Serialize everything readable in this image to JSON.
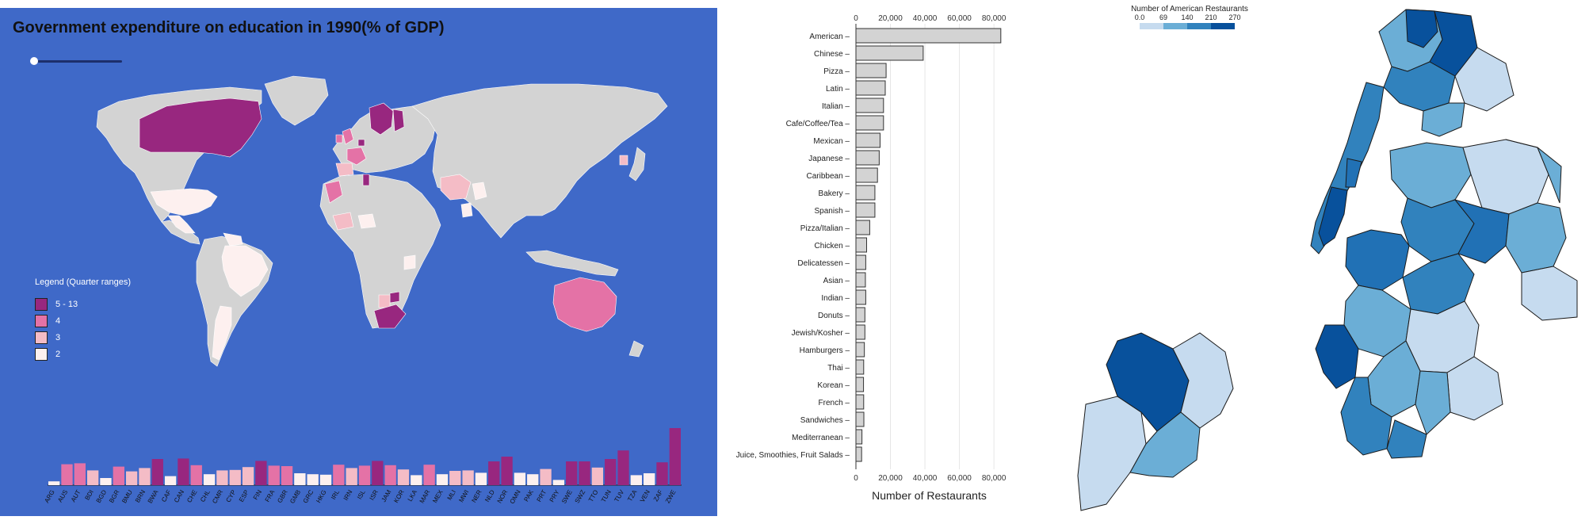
{
  "world_map": {
    "title": "Government expenditure on education in 1990(% of GDP)",
    "background_color": "#3f69c8",
    "legend": {
      "title": "Legend (Quarter ranges)",
      "items": [
        {
          "label": "5 - 13",
          "color": "#98277f"
        },
        {
          "label": "4",
          "color": "#e472a6"
        },
        {
          "label": "3",
          "color": "#f4bcc6"
        },
        {
          "label": "2",
          "color": "#fdf0ef"
        }
      ]
    },
    "no_data_color": "#d3d3d3"
  },
  "chart_data": [
    {
      "type": "bar",
      "title": "Government expenditure on education in 1990(% of GDP)",
      "categories": [
        "ARG",
        "AUS",
        "AUT",
        "BDI",
        "BGD",
        "BGR",
        "BMU",
        "BRN",
        "BWA",
        "CAF",
        "CAN",
        "CHE",
        "CHL",
        "CMR",
        "CYP",
        "ESP",
        "FIN",
        "FRA",
        "GBR",
        "GMB",
        "GRC",
        "HKG",
        "IRL",
        "IRN",
        "ISL",
        "ISR",
        "JAM",
        "KOR",
        "LKA",
        "MAR",
        "MEX",
        "MLI",
        "MWI",
        "NER",
        "NLD",
        "NOR",
        "OMN",
        "PAK",
        "PRT",
        "PRY",
        "SWE",
        "SWZ",
        "TTO",
        "TUN",
        "TUV",
        "TZA",
        "VEN",
        "ZAF",
        "ZWE"
      ],
      "values": [
        0.8,
        4.4,
        4.6,
        3.1,
        1.5,
        3.9,
        2.9,
        3.6,
        5.5,
        1.9,
        5.6,
        4.2,
        2.3,
        3.1,
        3.2,
        3.8,
        5.1,
        4.1,
        4.0,
        2.5,
        2.3,
        2.2,
        4.3,
        3.6,
        4.1,
        5.1,
        4.2,
        3.3,
        2.1,
        4.3,
        2.3,
        3.0,
        3.1,
        2.6,
        5.0,
        6.0,
        2.6,
        2.3,
        3.4,
        1.1,
        5.0,
        5.0,
        3.7,
        5.5,
        7.3,
        2.1,
        2.5,
        4.8,
        12.0
      ],
      "colors": [
        "#fdf0ef",
        "#e472a6",
        "#e472a6",
        "#f4bcc6",
        "#fdf0ef",
        "#e472a6",
        "#f4bcc6",
        "#f4bcc6",
        "#98277f",
        "#fdf0ef",
        "#98277f",
        "#e472a6",
        "#fdf0ef",
        "#f4bcc6",
        "#f4bcc6",
        "#f4bcc6",
        "#98277f",
        "#e472a6",
        "#e472a6",
        "#fdf0ef",
        "#fdf0ef",
        "#fdf0ef",
        "#e472a6",
        "#f4bcc6",
        "#e472a6",
        "#98277f",
        "#e472a6",
        "#f4bcc6",
        "#fdf0ef",
        "#e472a6",
        "#fdf0ef",
        "#f4bcc6",
        "#f4bcc6",
        "#fdf0ef",
        "#98277f",
        "#98277f",
        "#fdf0ef",
        "#fdf0ef",
        "#f4bcc6",
        "#fdf0ef",
        "#98277f",
        "#98277f",
        "#f4bcc6",
        "#98277f",
        "#98277f",
        "#fdf0ef",
        "#fdf0ef",
        "#98277f",
        "#98277f"
      ],
      "xlabel": "",
      "ylabel": ""
    },
    {
      "type": "bar",
      "orientation": "horizontal",
      "title": "",
      "categories": [
        "American",
        "Chinese",
        "Pizza",
        "Latin",
        "Italian",
        "Cafe/Coffee/Tea",
        "Mexican",
        "Japanese",
        "Caribbean",
        "Bakery",
        "Spanish",
        "Pizza/Italian",
        "Chicken",
        "Delicatessen",
        "Asian",
        "Indian",
        "Donuts",
        "Jewish/Kosher",
        "Hamburgers",
        "Thai",
        "Korean",
        "French",
        "Sandwiches",
        "Mediterranean",
        "Juice, Smoothies, Fruit Salads"
      ],
      "values": [
        84000,
        39000,
        17500,
        17000,
        16000,
        16000,
        14000,
        13500,
        12500,
        11000,
        11000,
        8000,
        6200,
        5700,
        5500,
        5700,
        5200,
        5200,
        4900,
        4500,
        4400,
        4500,
        4600,
        3500,
        3300
      ],
      "xlabel": "Number of Restaurants",
      "ylabel": "",
      "xticks": [
        "0",
        "20,000",
        "40,000",
        "60,000",
        "80,000"
      ],
      "xlim": [
        0,
        85000
      ],
      "bar_color": "#d3d3d3"
    },
    {
      "type": "choropleth",
      "title": "",
      "legend_title": "Number of American Restaurants",
      "legend_ticks": [
        "0.0",
        "69",
        "140",
        "210",
        "270"
      ],
      "colors": [
        "#c6dbef",
        "#6baed6",
        "#3182bd",
        "#2171b5",
        "#08519c"
      ]
    }
  ]
}
